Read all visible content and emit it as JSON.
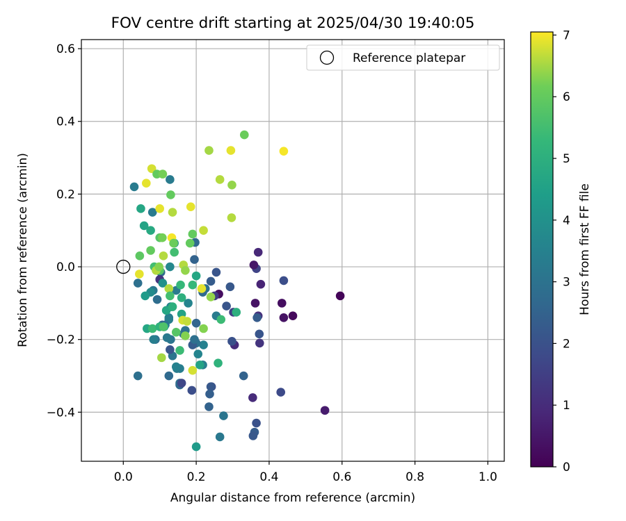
{
  "chart_data": {
    "type": "scatter",
    "title": "FOV centre drift starting at 2025/04/30 19:40:05",
    "xlabel": "Angular distance from reference (arcmin)",
    "ylabel": "Rotation from reference (arcmin)",
    "xlim": [
      -0.115,
      1.045
    ],
    "ylim": [
      -0.535,
      0.625
    ],
    "xticks": [
      0.0,
      0.2,
      0.4,
      0.6,
      0.8,
      1.0
    ],
    "xtick_labels": [
      "0.0",
      "0.2",
      "0.4",
      "0.6",
      "0.8",
      "1.0"
    ],
    "yticks": [
      -0.4,
      -0.2,
      0.0,
      0.2,
      0.4,
      0.6
    ],
    "ytick_labels": [
      "−0.4",
      "−0.2",
      "0.0",
      "0.2",
      "0.4",
      "0.6"
    ],
    "grid": true,
    "colormap": "viridis",
    "colorbar": {
      "label": "Hours from first FF file",
      "min": 0,
      "max": 7.05,
      "ticks": [
        0,
        1,
        2,
        3,
        4,
        5,
        6,
        7
      ],
      "tick_labels": [
        "0",
        "1",
        "2",
        "3",
        "4",
        "5",
        "6",
        "7"
      ]
    },
    "legend": {
      "placement": "top-right",
      "entries": [
        {
          "label": "Reference platepar",
          "marker": "hollow-circle"
        }
      ]
    },
    "reference_point": {
      "x": 0.0,
      "y": 0.0
    },
    "points": [
      [
        0.595,
        -0.08,
        0.1
      ],
      [
        0.553,
        -0.395,
        0.6
      ],
      [
        0.465,
        -0.135,
        0.2
      ],
      [
        0.44,
        -0.14,
        0.4
      ],
      [
        0.435,
        -0.1,
        0.3
      ],
      [
        0.44,
        -0.038,
        1.9
      ],
      [
        0.432,
        -0.345,
        1.8
      ],
      [
        0.377,
        -0.048,
        0.8
      ],
      [
        0.37,
        0.04,
        0.9
      ],
      [
        0.365,
        -0.005,
        1.6
      ],
      [
        0.358,
        0.005,
        0.5
      ],
      [
        0.373,
        -0.185,
        2.1
      ],
      [
        0.374,
        -0.21,
        1.2
      ],
      [
        0.37,
        -0.135,
        1.1
      ],
      [
        0.362,
        -0.1,
        0.4
      ],
      [
        0.367,
        -0.14,
        2.3
      ],
      [
        0.365,
        -0.43,
        2.0
      ],
      [
        0.36,
        -0.455,
        2.3
      ],
      [
        0.356,
        -0.465,
        2.2
      ],
      [
        0.355,
        -0.36,
        1.0
      ],
      [
        0.33,
        -0.3,
        2.5
      ],
      [
        0.305,
        -0.215,
        1.0
      ],
      [
        0.302,
        -0.125,
        1.5
      ],
      [
        0.298,
        -0.205,
        2.0
      ],
      [
        0.293,
        -0.055,
        2.2
      ],
      [
        0.283,
        -0.108,
        2.1
      ],
      [
        0.275,
        -0.41,
        3.1
      ],
      [
        0.265,
        -0.468,
        3.2
      ],
      [
        0.262,
        -0.075,
        0.3
      ],
      [
        0.255,
        -0.015,
        2.1
      ],
      [
        0.255,
        -0.135,
        3.3
      ],
      [
        0.25,
        -0.08,
        1.4
      ],
      [
        0.242,
        -0.33,
        1.9
      ],
      [
        0.24,
        -0.33,
        2.2
      ],
      [
        0.237,
        -0.35,
        2.4
      ],
      [
        0.235,
        -0.385,
        2.5
      ],
      [
        0.24,
        -0.04,
        2.3
      ],
      [
        0.225,
        -0.06,
        2.9
      ],
      [
        0.218,
        -0.07,
        2.7
      ],
      [
        0.22,
        -0.215,
        3.5
      ],
      [
        0.218,
        -0.27,
        3.4
      ],
      [
        0.205,
        -0.24,
        3.6
      ],
      [
        0.2,
        -0.155,
        2.6
      ],
      [
        0.2,
        -0.21,
        3.0
      ],
      [
        0.2,
        -0.495,
        4.3
      ],
      [
        0.19,
        -0.215,
        2.3
      ],
      [
        0.195,
        -0.2,
        2.9
      ],
      [
        0.188,
        -0.34,
        1.9
      ],
      [
        0.195,
        0.02,
        2.5
      ],
      [
        0.197,
        0.067,
        2.7
      ],
      [
        0.178,
        -0.1,
        3.6
      ],
      [
        0.17,
        -0.175,
        3.0
      ],
      [
        0.165,
        -0.185,
        2.9
      ],
      [
        0.155,
        -0.325,
        2.6
      ],
      [
        0.155,
        -0.32,
        2.8
      ],
      [
        0.16,
        -0.32,
        1.7
      ],
      [
        0.155,
        -0.28,
        3.4
      ],
      [
        0.147,
        -0.28,
        3.3
      ],
      [
        0.145,
        -0.275,
        3.5
      ],
      [
        0.145,
        -0.065,
        3.3
      ],
      [
        0.14,
        0.065,
        4.0
      ],
      [
        0.135,
        -0.245,
        3.1
      ],
      [
        0.13,
        -0.2,
        3.1
      ],
      [
        0.128,
        -0.228,
        2.1
      ],
      [
        0.125,
        -0.3,
        2.7
      ],
      [
        0.12,
        -0.195,
        3.2
      ],
      [
        0.125,
        -0.14,
        3.3
      ],
      [
        0.125,
        -0.145,
        3.4
      ],
      [
        0.13,
        -0.11,
        3.5
      ],
      [
        0.128,
        -0.0,
        3.7
      ],
      [
        0.128,
        0.24,
        3.3
      ],
      [
        0.115,
        -0.16,
        3.1
      ],
      [
        0.107,
        -0.16,
        2.6
      ],
      [
        0.103,
        -0.015,
        2.7
      ],
      [
        0.1,
        -0.035,
        1.2
      ],
      [
        0.093,
        -0.09,
        2.8
      ],
      [
        0.088,
        -0.2,
        2.9
      ],
      [
        0.083,
        -0.2,
        3.4
      ],
      [
        0.082,
        -0.065,
        3.2
      ],
      [
        0.075,
        -0.07,
        3.8
      ],
      [
        0.08,
        0.15,
        3.3
      ],
      [
        0.04,
        -0.045,
        2.9
      ],
      [
        0.04,
        -0.3,
        2.9
      ],
      [
        0.03,
        0.22,
        3.3
      ],
      [
        0.075,
        0.1,
        4.8
      ],
      [
        0.057,
        0.113,
        4.6
      ],
      [
        0.048,
        0.16,
        4.7
      ],
      [
        0.06,
        -0.08,
        4.3
      ],
      [
        0.065,
        -0.17,
        4.7
      ],
      [
        0.08,
        -0.17,
        5.4
      ],
      [
        0.1,
        -0.01,
        5.8
      ],
      [
        0.1,
        -0.165,
        5.1
      ],
      [
        0.105,
        -0.25,
        6.5
      ],
      [
        0.108,
        -0.045,
        4.0
      ],
      [
        0.112,
        -0.165,
        4.4
      ],
      [
        0.118,
        -0.12,
        4.7
      ],
      [
        0.125,
        -0.06,
        6.6
      ],
      [
        0.128,
        -0.08,
        5.5
      ],
      [
        0.135,
        -0.11,
        5.0
      ],
      [
        0.14,
        0.04,
        5.5
      ],
      [
        0.145,
        -0.18,
        5.8
      ],
      [
        0.155,
        -0.23,
        5.4
      ],
      [
        0.157,
        -0.05,
        5.3
      ],
      [
        0.16,
        -0.085,
        5.0
      ],
      [
        0.16,
        -0.13,
        4.6
      ],
      [
        0.163,
        -0.147,
        6.8
      ],
      [
        0.165,
        0.005,
        6.6
      ],
      [
        0.17,
        -0.01,
        6.4
      ],
      [
        0.17,
        -0.19,
        6.3
      ],
      [
        0.175,
        -0.15,
        6.7
      ],
      [
        0.183,
        0.065,
        6.0
      ],
      [
        0.19,
        0.09,
        6.0
      ],
      [
        0.185,
        0.165,
        6.9
      ],
      [
        0.19,
        -0.285,
        6.8
      ],
      [
        0.19,
        -0.05,
        5.3
      ],
      [
        0.2,
        -0.025,
        4.7
      ],
      [
        0.21,
        -0.27,
        4.6
      ],
      [
        0.215,
        -0.06,
        6.9
      ],
      [
        0.22,
        -0.17,
        6.3
      ],
      [
        0.22,
        0.1,
        6.7
      ],
      [
        0.235,
        0.32,
        6.5
      ],
      [
        0.24,
        -0.083,
        6.4
      ],
      [
        0.26,
        -0.265,
        5.1
      ],
      [
        0.265,
        0.24,
        6.6
      ],
      [
        0.268,
        -0.145,
        5.4
      ],
      [
        0.295,
        0.32,
        6.9
      ],
      [
        0.297,
        0.135,
        6.6
      ],
      [
        0.298,
        0.225,
        6.4
      ],
      [
        0.31,
        -0.125,
        5.0
      ],
      [
        0.332,
        0.363,
        6.1
      ],
      [
        0.44,
        0.318,
        7.0
      ],
      [
        0.078,
        0.27,
        6.8
      ],
      [
        0.063,
        0.23,
        6.9
      ],
      [
        0.092,
        0.255,
        6.0
      ],
      [
        0.1,
        0.16,
        6.9
      ],
      [
        0.108,
        0.255,
        6.2
      ],
      [
        0.13,
        0.198,
        6.0
      ],
      [
        0.135,
        0.15,
        6.6
      ],
      [
        0.085,
        0.0,
        5.5
      ],
      [
        0.045,
        0.03,
        5.9
      ],
      [
        0.075,
        0.045,
        6.0
      ],
      [
        0.1,
        0.08,
        5.8
      ],
      [
        0.107,
        0.08,
        6.2
      ],
      [
        0.11,
        0.03,
        6.6
      ],
      [
        0.133,
        0.08,
        7.0
      ],
      [
        0.138,
        0.065,
        6.1
      ],
      [
        0.044,
        -0.02,
        6.9
      ],
      [
        0.09,
        -0.01,
        6.6
      ],
      [
        0.098,
        0.0,
        6.3
      ],
      [
        0.11,
        -0.165,
        5.7
      ]
    ]
  }
}
